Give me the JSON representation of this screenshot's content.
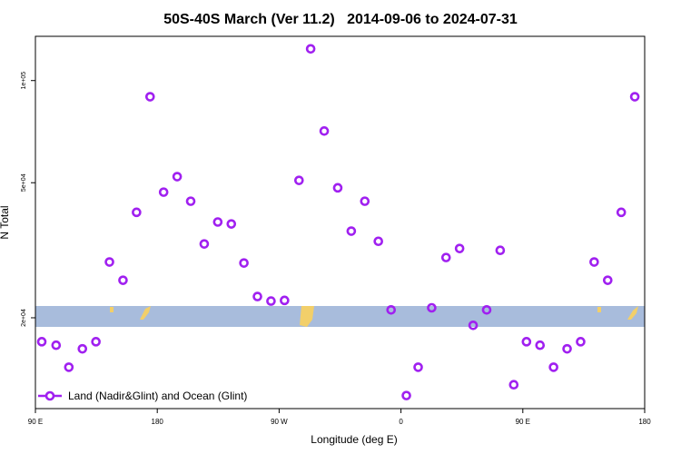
{
  "chart_data": {
    "type": "scatter",
    "title": "50S-40S March (Ver 11.2)   2014-09-06 to 2024-07-31",
    "xlabel": "Longitude (deg E)",
    "ylabel": "N Total",
    "yscale": "log",
    "xlim": [
      90,
      540
    ],
    "ylim": [
      10800,
      135000
    ],
    "xticks": [
      {
        "value": 90,
        "label": "90 E"
      },
      180,
      {
        "value": 270,
        "label": "90 W"
      },
      {
        "value": 360,
        "label": "0"
      },
      {
        "value": 450,
        "label": "90 E"
      },
      {
        "value": 540,
        "label": "180"
      }
    ],
    "yticks": [
      {
        "value": 20000,
        "label": "2e+04"
      },
      {
        "value": 50000,
        "label": "5e+04"
      },
      {
        "value": 100000,
        "label": "1e+05"
      }
    ],
    "legend": "lower left",
    "series": [
      {
        "name": "Land (Nadir&Glint) and Ocean (Glint)",
        "color": "#a020f0",
        "x": [
          94.7,
          105.3,
          114.7,
          124.7,
          134.7,
          144.7,
          154.7,
          164.7,
          174.7,
          184.7,
          194.7,
          204.7,
          214.7,
          224.7,
          234.7,
          244,
          254,
          264,
          274,
          284.7,
          293.3,
          303.3,
          313.3,
          323.3,
          333.3,
          343.3,
          352.7,
          364,
          372.7,
          382.7,
          393.3,
          403.3,
          413.3,
          423.3,
          433.3,
          443.3,
          452.7,
          462.7,
          472.7,
          482.7,
          492.7,
          502.7,
          512.7,
          522.7,
          532.7
        ],
        "values": [
          17000,
          16600,
          14300,
          16200,
          17000,
          29200,
          25800,
          40900,
          89600,
          46900,
          52100,
          44100,
          33000,
          38300,
          37800,
          29000,
          23100,
          22400,
          22500,
          50800,
          124000,
          71000,
          48300,
          36000,
          44100,
          33600,
          21100,
          11800,
          14300,
          21400,
          30100,
          32000,
          19000,
          21100,
          31600,
          12700,
          17000,
          16600,
          14300,
          16200,
          17000,
          29200,
          25800,
          40900,
          89600
        ]
      }
    ]
  }
}
